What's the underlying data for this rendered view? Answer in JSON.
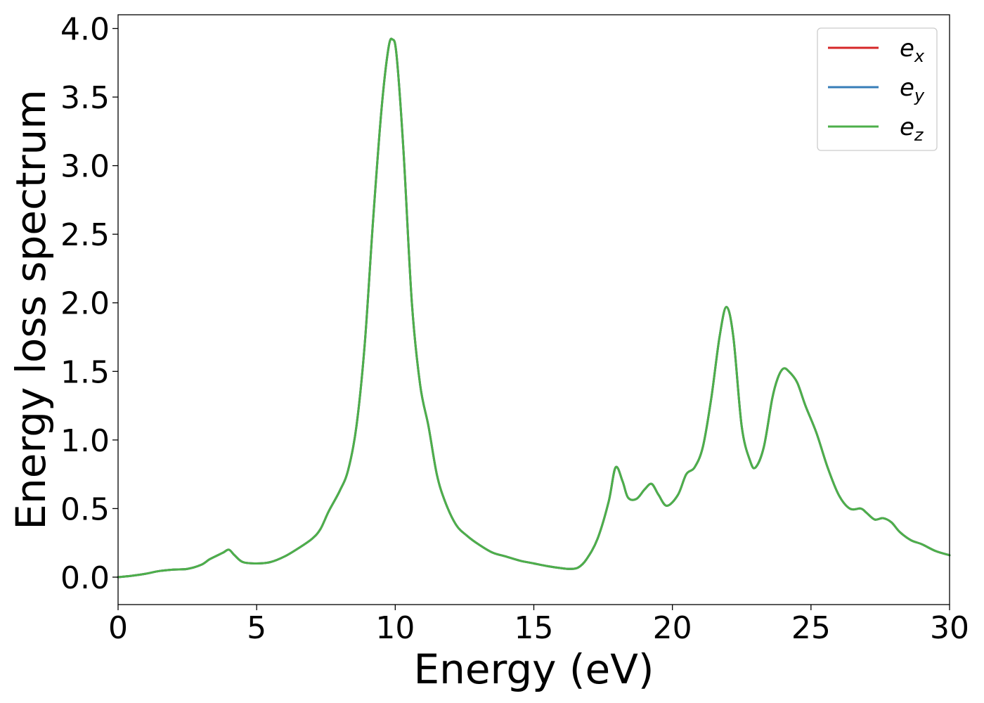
{
  "chart_data": {
    "type": "line",
    "title": "",
    "xlabel": "Energy (eV)",
    "ylabel": "Energy loss spectrum",
    "xlim": [
      0,
      30
    ],
    "ylim": [
      -0.2,
      4.1
    ],
    "xticks": [
      0,
      5,
      10,
      15,
      20,
      25,
      30
    ],
    "xtick_labels": [
      "0",
      "5",
      "10",
      "15",
      "20",
      "25",
      "30"
    ],
    "yticks": [
      0.0,
      0.5,
      1.0,
      1.5,
      2.0,
      2.5,
      3.0,
      3.5,
      4.0
    ],
    "ytick_labels": [
      "0.0",
      "0.5",
      "1.0",
      "1.5",
      "2.0",
      "2.5",
      "3.0",
      "3.5",
      "4.0"
    ],
    "grid": false,
    "legend_position": "top-right",
    "x": [
      0,
      0.5,
      1.0,
      1.5,
      2.0,
      2.5,
      3.0,
      3.3,
      3.6,
      3.8,
      4.0,
      4.2,
      4.5,
      5.0,
      5.5,
      6.0,
      6.5,
      7.0,
      7.3,
      7.6,
      8.0,
      8.3,
      8.6,
      8.9,
      9.2,
      9.5,
      9.75,
      9.9,
      10.05,
      10.3,
      10.6,
      10.9,
      11.2,
      11.5,
      11.8,
      12.2,
      12.6,
      13.0,
      13.5,
      14.0,
      14.5,
      15.0,
      15.5,
      16.0,
      16.3,
      16.6,
      16.9,
      17.3,
      17.7,
      17.95,
      18.2,
      18.4,
      18.7,
      19.0,
      19.25,
      19.5,
      19.8,
      20.2,
      20.5,
      20.8,
      21.1,
      21.4,
      21.7,
      21.95,
      22.2,
      22.5,
      22.8,
      23.0,
      23.3,
      23.6,
      23.8,
      24.0,
      24.2,
      24.5,
      24.8,
      25.2,
      25.6,
      26.0,
      26.4,
      26.8,
      27.0,
      27.3,
      27.6,
      27.9,
      28.2,
      28.6,
      29.0,
      29.5,
      30.0
    ],
    "series": [
      {
        "name": "e_x",
        "label_base": "e",
        "label_sub": "x",
        "color": "#d62728",
        "values": [
          0.0,
          0.01,
          0.025,
          0.045,
          0.055,
          0.06,
          0.09,
          0.13,
          0.16,
          0.18,
          0.2,
          0.16,
          0.11,
          0.1,
          0.11,
          0.15,
          0.21,
          0.28,
          0.35,
          0.48,
          0.63,
          0.78,
          1.1,
          1.7,
          2.6,
          3.4,
          3.85,
          3.92,
          3.8,
          3.1,
          2.0,
          1.4,
          1.1,
          0.75,
          0.55,
          0.38,
          0.3,
          0.24,
          0.18,
          0.15,
          0.12,
          0.1,
          0.08,
          0.065,
          0.06,
          0.07,
          0.13,
          0.28,
          0.55,
          0.8,
          0.7,
          0.58,
          0.57,
          0.64,
          0.68,
          0.6,
          0.52,
          0.6,
          0.75,
          0.8,
          0.95,
          1.3,
          1.75,
          1.97,
          1.75,
          1.1,
          0.85,
          0.8,
          0.95,
          1.3,
          1.45,
          1.52,
          1.5,
          1.42,
          1.25,
          1.05,
          0.8,
          0.6,
          0.5,
          0.5,
          0.47,
          0.42,
          0.43,
          0.4,
          0.33,
          0.27,
          0.24,
          0.19,
          0.16
        ]
      },
      {
        "name": "e_y",
        "label_base": "e",
        "label_sub": "y",
        "color": "#377eb8",
        "values": [
          0.0,
          0.01,
          0.025,
          0.045,
          0.055,
          0.06,
          0.09,
          0.13,
          0.16,
          0.18,
          0.2,
          0.16,
          0.11,
          0.1,
          0.11,
          0.15,
          0.21,
          0.28,
          0.35,
          0.48,
          0.63,
          0.78,
          1.1,
          1.7,
          2.6,
          3.4,
          3.85,
          3.92,
          3.8,
          3.1,
          2.0,
          1.4,
          1.1,
          0.75,
          0.55,
          0.38,
          0.3,
          0.24,
          0.18,
          0.15,
          0.12,
          0.1,
          0.08,
          0.065,
          0.06,
          0.07,
          0.13,
          0.28,
          0.55,
          0.8,
          0.7,
          0.58,
          0.57,
          0.64,
          0.68,
          0.6,
          0.52,
          0.6,
          0.75,
          0.8,
          0.95,
          1.3,
          1.75,
          1.97,
          1.75,
          1.1,
          0.85,
          0.8,
          0.95,
          1.3,
          1.45,
          1.52,
          1.5,
          1.42,
          1.25,
          1.05,
          0.8,
          0.6,
          0.5,
          0.5,
          0.47,
          0.42,
          0.43,
          0.4,
          0.33,
          0.27,
          0.24,
          0.19,
          0.16
        ]
      },
      {
        "name": "e_z",
        "label_base": "e",
        "label_sub": "z",
        "color": "#4daf4a",
        "values": [
          0.0,
          0.01,
          0.025,
          0.045,
          0.055,
          0.06,
          0.09,
          0.13,
          0.16,
          0.18,
          0.2,
          0.16,
          0.11,
          0.1,
          0.11,
          0.15,
          0.21,
          0.28,
          0.35,
          0.48,
          0.63,
          0.78,
          1.1,
          1.7,
          2.6,
          3.4,
          3.85,
          3.92,
          3.8,
          3.1,
          2.0,
          1.4,
          1.1,
          0.75,
          0.55,
          0.38,
          0.3,
          0.24,
          0.18,
          0.15,
          0.12,
          0.1,
          0.08,
          0.065,
          0.06,
          0.07,
          0.13,
          0.28,
          0.55,
          0.8,
          0.7,
          0.58,
          0.57,
          0.64,
          0.68,
          0.6,
          0.52,
          0.6,
          0.75,
          0.8,
          0.95,
          1.3,
          1.75,
          1.97,
          1.75,
          1.1,
          0.85,
          0.8,
          0.95,
          1.3,
          1.45,
          1.52,
          1.5,
          1.42,
          1.25,
          1.05,
          0.8,
          0.6,
          0.5,
          0.5,
          0.47,
          0.42,
          0.43,
          0.4,
          0.33,
          0.27,
          0.24,
          0.19,
          0.16
        ]
      }
    ]
  }
}
